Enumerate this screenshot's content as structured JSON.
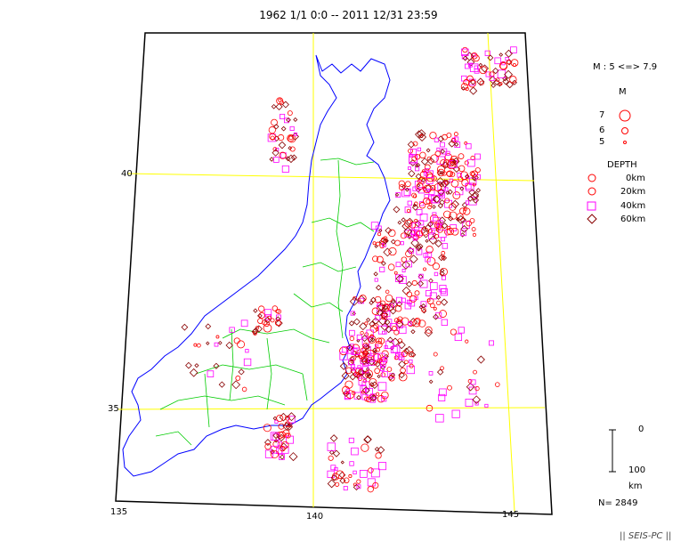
{
  "title": "1962 1/1 0:0 -- 2011 12/31 23:59",
  "axes": {
    "lat_labels": [
      "40",
      "35"
    ],
    "lon_labels": [
      "135",
      "140",
      "145"
    ]
  },
  "legend": {
    "mag_range": "M : 5 <=> 7.9",
    "mag_heading": "M",
    "magnitudes": [
      "7",
      "6",
      "5"
    ],
    "depth_heading": "DEPTH",
    "depths": [
      "0km",
      "20km",
      "40km",
      "60km"
    ],
    "depth_scale_top": "0",
    "depth_scale_bottom": "100",
    "depth_scale_unit": "km"
  },
  "count": "N= 2849",
  "footer": "|| SEIS-PC ||",
  "colors": {
    "frame": "#000000",
    "grid": "#ffff00",
    "coast": "#0000ff",
    "prefecture": "#00cc00",
    "shallow": "#ff0000",
    "mid": "#ff00ff",
    "deep": "#880000"
  }
}
